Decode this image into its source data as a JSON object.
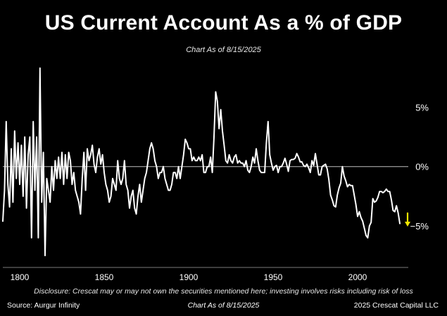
{
  "colors": {
    "background": "#000000",
    "line": "#ffffff",
    "zero_line": "#bdbdbd",
    "axis": "#7a7a7a",
    "arrow": "#f2e600"
  },
  "header": {
    "chart_as_of": "Chart As of 8/15/2025"
  },
  "footer": {
    "disclosure": "Disclosure: Crescat may or may not own the securities mentioned here; investing involves risks including risk of loss",
    "source": "Source: Aurgur Infinity",
    "chart_as_of": "Chart As of 8/15/2025",
    "copyright": "2025 Crescat Capital LLC"
  },
  "annotation": {
    "icon": "down-arrow-icon",
    "meaning": "recent decline"
  },
  "chart_data": {
    "type": "line",
    "title": "US Current Account As a % of GDP",
    "xlabel": "",
    "ylabel": "",
    "xlim": [
      1790,
      2030
    ],
    "ylim": [
      -8.5,
      9
    ],
    "x_ticks": [
      1800,
      1850,
      1900,
      1950,
      2000
    ],
    "y_ticks": [
      {
        "value": 5,
        "label": "5%"
      },
      {
        "value": 0,
        "label": "0%"
      },
      {
        "value": -5,
        "label": "−5%"
      }
    ],
    "reference_line": 0,
    "grid": false,
    "series": [
      {
        "name": "US Current Account % of GDP",
        "points": [
          [
            1790,
            -4.6
          ],
          [
            1791,
            -2.0
          ],
          [
            1792,
            3.8
          ],
          [
            1793,
            -1.5
          ],
          [
            1794,
            -3.4
          ],
          [
            1795,
            1.5
          ],
          [
            1796,
            -3.0
          ],
          [
            1797,
            3.0
          ],
          [
            1798,
            -1.0
          ],
          [
            1799,
            2.0
          ],
          [
            1800,
            -1.5
          ],
          [
            1801,
            1.8
          ],
          [
            1802,
            -2.5
          ],
          [
            1803,
            2.5
          ],
          [
            1804,
            -3.5
          ],
          [
            1805,
            1.0
          ],
          [
            1806,
            2.5
          ],
          [
            1807,
            -6.0
          ],
          [
            1808,
            3.8
          ],
          [
            1809,
            -2.0
          ],
          [
            1810,
            2.5
          ],
          [
            1811,
            -6.0
          ],
          [
            1812,
            8.3
          ],
          [
            1813,
            -3.0
          ],
          [
            1814,
            1.2
          ],
          [
            1815,
            -7.5
          ],
          [
            1816,
            -1.0
          ],
          [
            1817,
            -2.0
          ],
          [
            1818,
            -3.0
          ],
          [
            1819,
            0.0
          ],
          [
            1820,
            -2.0
          ],
          [
            1821,
            0.5
          ],
          [
            1822,
            -1.0
          ],
          [
            1823,
            0.8
          ],
          [
            1824,
            -1.0
          ],
          [
            1825,
            1.2
          ],
          [
            1826,
            -1.5
          ],
          [
            1827,
            1.0
          ],
          [
            1828,
            -1.0
          ],
          [
            1829,
            1.2
          ],
          [
            1830,
            0.5
          ],
          [
            1831,
            -1.5
          ],
          [
            1832,
            -0.5
          ],
          [
            1833,
            -2.0
          ],
          [
            1834,
            -2.5
          ],
          [
            1835,
            -3.0
          ],
          [
            1836,
            -4.0
          ],
          [
            1837,
            -1.0
          ],
          [
            1838,
            1.2
          ],
          [
            1839,
            -2.0
          ],
          [
            1840,
            1.5
          ],
          [
            1841,
            0.5
          ],
          [
            1842,
            1.0
          ],
          [
            1843,
            1.8
          ],
          [
            1844,
            0.2
          ],
          [
            1845,
            -0.5
          ],
          [
            1846,
            0.8
          ],
          [
            1847,
            1.5
          ],
          [
            1848,
            0.2
          ],
          [
            1849,
            1.0
          ],
          [
            1850,
            -0.5
          ],
          [
            1851,
            -1.5
          ],
          [
            1852,
            -2.0
          ],
          [
            1853,
            -3.0
          ],
          [
            1854,
            -2.5
          ],
          [
            1855,
            -1.0
          ],
          [
            1856,
            -1.5
          ],
          [
            1857,
            -2.0
          ],
          [
            1858,
            0.5
          ],
          [
            1859,
            -1.0
          ],
          [
            1860,
            -1.5
          ],
          [
            1861,
            -1.0
          ],
          [
            1862,
            0.5
          ],
          [
            1863,
            -1.5
          ],
          [
            1864,
            -2.0
          ],
          [
            1865,
            -3.5
          ],
          [
            1866,
            -2.5
          ],
          [
            1867,
            -2.0
          ],
          [
            1868,
            -3.5
          ],
          [
            1869,
            -4.0
          ],
          [
            1870,
            -2.5
          ],
          [
            1871,
            -1.5
          ],
          [
            1872,
            -3.0
          ],
          [
            1873,
            -2.0
          ],
          [
            1874,
            -1.0
          ],
          [
            1875,
            -0.5
          ],
          [
            1876,
            0.5
          ],
          [
            1877,
            1.5
          ],
          [
            1878,
            2.0
          ],
          [
            1879,
            1.5
          ],
          [
            1880,
            0.5
          ],
          [
            1881,
            0.0
          ],
          [
            1882,
            -1.0
          ],
          [
            1883,
            -0.5
          ],
          [
            1884,
            -0.5
          ],
          [
            1885,
            0.0
          ],
          [
            1886,
            -1.0
          ],
          [
            1887,
            -1.5
          ],
          [
            1888,
            -2.0
          ],
          [
            1889,
            -2.0
          ],
          [
            1890,
            -1.5
          ],
          [
            1891,
            -0.5
          ],
          [
            1892,
            -0.5
          ],
          [
            1893,
            -1.0
          ],
          [
            1894,
            0.0
          ],
          [
            1895,
            -1.0
          ],
          [
            1896,
            0.0
          ],
          [
            1897,
            1.0
          ],
          [
            1898,
            2.3
          ],
          [
            1899,
            2.0
          ],
          [
            1900,
            1.5
          ],
          [
            1901,
            1.5
          ],
          [
            1902,
            0.5
          ],
          [
            1903,
            0.8
          ],
          [
            1904,
            0.5
          ],
          [
            1905,
            0.5
          ],
          [
            1906,
            0.8
          ],
          [
            1907,
            0.5
          ],
          [
            1908,
            1.0
          ],
          [
            1909,
            -0.5
          ],
          [
            1910,
            -0.5
          ],
          [
            1911,
            0.0
          ],
          [
            1912,
            0.0
          ],
          [
            1913,
            0.8
          ],
          [
            1914,
            -0.5
          ],
          [
            1915,
            2.5
          ],
          [
            1916,
            6.3
          ],
          [
            1917,
            5.5
          ],
          [
            1918,
            3.2
          ],
          [
            1919,
            4.8
          ],
          [
            1920,
            3.0
          ],
          [
            1921,
            1.8
          ],
          [
            1922,
            0.5
          ],
          [
            1923,
            0.3
          ],
          [
            1924,
            1.0
          ],
          [
            1925,
            0.5
          ],
          [
            1926,
            0.3
          ],
          [
            1927,
            0.8
          ],
          [
            1928,
            1.0
          ],
          [
            1929,
            0.3
          ],
          [
            1930,
            0.5
          ],
          [
            1931,
            0.3
          ],
          [
            1932,
            0.3
          ],
          [
            1933,
            0.0
          ],
          [
            1934,
            0.5
          ],
          [
            1935,
            -0.3
          ],
          [
            1936,
            -0.5
          ],
          [
            1937,
            0.0
          ],
          [
            1938,
            0.8
          ],
          [
            1939,
            0.3
          ],
          [
            1940,
            1.5
          ],
          [
            1941,
            0.5
          ],
          [
            1942,
            -0.3
          ],
          [
            1943,
            -0.5
          ],
          [
            1944,
            -0.5
          ],
          [
            1945,
            -0.5
          ],
          [
            1946,
            2.0
          ],
          [
            1947,
            3.8
          ],
          [
            1948,
            1.0
          ],
          [
            1949,
            0.3
          ],
          [
            1950,
            -0.3
          ],
          [
            1951,
            0.0
          ],
          [
            1952,
            0.1
          ],
          [
            1953,
            -0.5
          ],
          [
            1954,
            0.0
          ],
          [
            1955,
            0.0
          ],
          [
            1956,
            0.3
          ],
          [
            1957,
            0.7
          ],
          [
            1958,
            0.2
          ],
          [
            1959,
            -0.4
          ],
          [
            1960,
            0.5
          ],
          [
            1961,
            0.6
          ],
          [
            1962,
            0.6
          ],
          [
            1963,
            0.7
          ],
          [
            1964,
            1.1
          ],
          [
            1965,
            0.8
          ],
          [
            1966,
            0.4
          ],
          [
            1967,
            0.4
          ],
          [
            1968,
            0.1
          ],
          [
            1969,
            0.0
          ],
          [
            1970,
            0.2
          ],
          [
            1971,
            -0.1
          ],
          [
            1972,
            -0.5
          ],
          [
            1973,
            0.5
          ],
          [
            1974,
            0.1
          ],
          [
            1975,
            1.1
          ],
          [
            1976,
            0.2
          ],
          [
            1977,
            -0.7
          ],
          [
            1978,
            -0.7
          ],
          [
            1979,
            0.0
          ],
          [
            1980,
            0.1
          ],
          [
            1981,
            0.2
          ],
          [
            1982,
            -0.2
          ],
          [
            1983,
            -1.1
          ],
          [
            1984,
            -2.4
          ],
          [
            1985,
            -2.8
          ],
          [
            1986,
            -3.3
          ],
          [
            1987,
            -3.4
          ],
          [
            1988,
            -2.4
          ],
          [
            1989,
            -1.8
          ],
          [
            1990,
            -1.4
          ],
          [
            1991,
            0.0
          ],
          [
            1992,
            -0.8
          ],
          [
            1993,
            -1.2
          ],
          [
            1994,
            -1.7
          ],
          [
            1995,
            -1.5
          ],
          [
            1996,
            -1.6
          ],
          [
            1997,
            -1.6
          ],
          [
            1998,
            -2.4
          ],
          [
            1999,
            -3.2
          ],
          [
            2000,
            -4.2
          ],
          [
            2001,
            -3.8
          ],
          [
            2002,
            -4.3
          ],
          [
            2003,
            -4.6
          ],
          [
            2004,
            -5.2
          ],
          [
            2005,
            -5.8
          ],
          [
            2006,
            -6.0
          ],
          [
            2007,
            -5.0
          ],
          [
            2008,
            -4.7
          ],
          [
            2009,
            -2.7
          ],
          [
            2010,
            -3.0
          ],
          [
            2011,
            -2.9
          ],
          [
            2012,
            -2.6
          ],
          [
            2013,
            -2.1
          ],
          [
            2014,
            -2.1
          ],
          [
            2015,
            -2.2
          ],
          [
            2016,
            -2.1
          ],
          [
            2017,
            -1.9
          ],
          [
            2018,
            -2.1
          ],
          [
            2019,
            -2.1
          ],
          [
            2020,
            -2.8
          ],
          [
            2021,
            -3.7
          ],
          [
            2022,
            -3.8
          ],
          [
            2023,
            -3.3
          ],
          [
            2024,
            -3.9
          ],
          [
            2025,
            -4.8
          ]
        ]
      }
    ]
  }
}
